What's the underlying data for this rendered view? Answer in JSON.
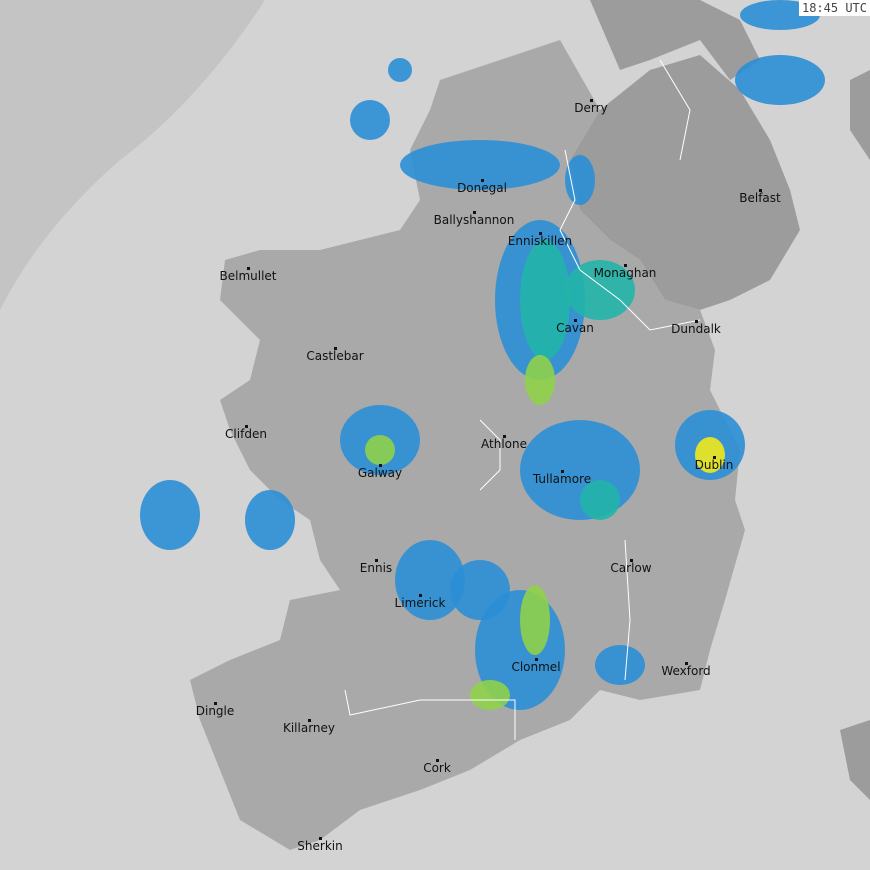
{
  "timestamp": "18:45 UTC",
  "colors": {
    "sea": "#d3d3d3",
    "outside_radar": "#c4c4c4",
    "land": "#a9a9a9",
    "land_uk": "#9c9c9c",
    "rain_light": "#2b8fd6",
    "rain_moderate": "#22b5a8",
    "rain_heavy": "#8fd24a",
    "rain_intense": "#f2e81c"
  },
  "cities": [
    "Derry",
    "Belfast",
    "Donegal",
    "Ballyshannon",
    "Enniskillen",
    "Belmullet",
    "Monaghan",
    "Cavan",
    "Dundalk",
    "Castlebar",
    "Clifden",
    "Athlone",
    "Galway",
    "Dublin",
    "Tullamore",
    "Ennis",
    "Carlow",
    "Limerick",
    "Clonmel",
    "Wexford",
    "Dingle",
    "Killarney",
    "Cork",
    "Sherkin"
  ]
}
